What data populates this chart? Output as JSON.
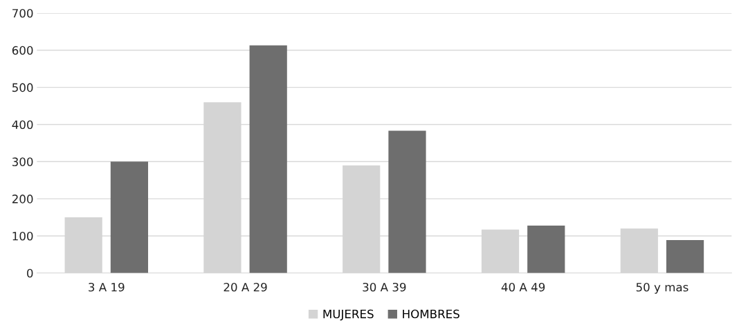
{
  "chart_data": {
    "type": "bar",
    "categories": [
      "3 A 19",
      "20 A 29",
      "30 A 39",
      "40 A 49",
      "50 y mas"
    ],
    "series": [
      {
        "name": "MUJERES",
        "color": "#d4d4d4",
        "values": [
          150,
          460,
          290,
          117,
          120
        ]
      },
      {
        "name": "HOMBRES",
        "color": "#6e6e6e",
        "values": [
          300,
          613,
          383,
          128,
          89
        ]
      }
    ],
    "ylim": [
      0,
      700
    ],
    "yticks": [
      0,
      100,
      200,
      300,
      400,
      500,
      600,
      700
    ],
    "grid": "y",
    "legend": "bottom"
  }
}
